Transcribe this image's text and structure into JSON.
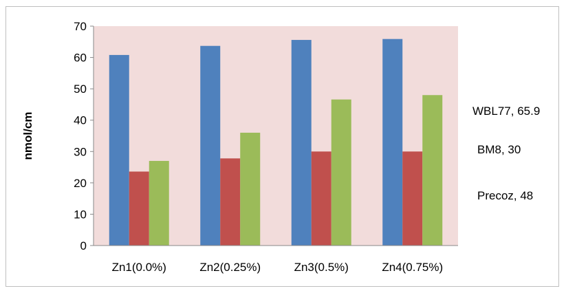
{
  "chart_data": {
    "type": "bar",
    "categories": [
      "Zn1(0.0%)",
      "Zn2(0.25%)",
      "Zn3(0.5%)",
      "Zn4(0.75%)"
    ],
    "series": [
      {
        "values": [
          60.8,
          63.7,
          65.6,
          65.9
        ],
        "color": "#4f81bd"
      },
      {
        "values": [
          23.6,
          27.8,
          30.0,
          30.0
        ],
        "color": "#c0504d"
      },
      {
        "values": [
          27.0,
          36.0,
          46.6,
          48.0
        ],
        "color": "#9bbb59"
      }
    ],
    "ylabel": "nmol/cm",
    "ylim": [
      0,
      70
    ],
    "yticks": [
      0,
      10,
      20,
      30,
      40,
      50,
      60,
      70
    ],
    "plot_background": "#f2dcdb",
    "grid": false,
    "annotations": [
      "WBL77, 65.9",
      "BM8, 30",
      "Precoz, 48"
    ]
  }
}
